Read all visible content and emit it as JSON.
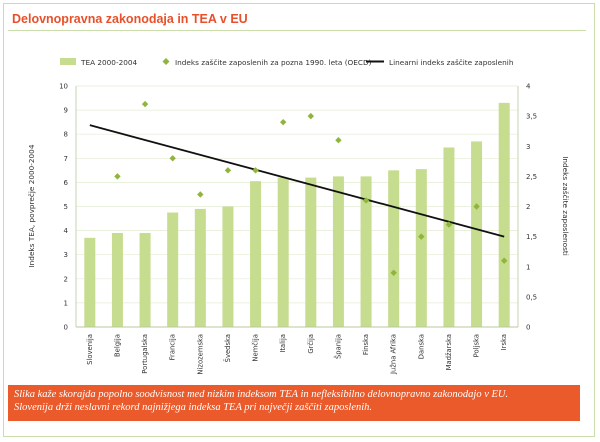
{
  "title": "Delovnopravna zakonodaja in TEA v EU",
  "legend": {
    "bars": "TEA 2000-2004",
    "diamonds": "Indeks zaščite zaposlenih za pozna 1990. leta (OECD)",
    "line": "Linearni indeks zaščite zaposlenih"
  },
  "caption": {
    "line1": "Slika kaže skorajda popolno soodvisnost med nizkim indeksom TEA in nefleksibilno delovnopravno zakonodajo v EU.",
    "line2": "Slovenija drži neslavni rekord najnižjega indeksa TEA pri največji zaščiti zaposlenih."
  },
  "colors": {
    "bar": "#c6dc8e",
    "diamond": "#8fb53c",
    "line": "#111111",
    "title": "#e8502a",
    "caption_bg": "#ea5a2a",
    "frame": "#c9dcaa",
    "grid": "#e4ecd4"
  },
  "chart_data": {
    "type": "bar",
    "categories": [
      "Slovenija",
      "Belgija",
      "Portugalska",
      "Francija",
      "Nizozemska",
      "Švedska",
      "Nemčija",
      "Italija",
      "Grčija",
      "Španija",
      "Finska",
      "Južna Afrika",
      "Danska",
      "Madžarska",
      "Poljska",
      "Irska"
    ],
    "series": [
      {
        "name": "TEA 2000-2004",
        "type": "bar",
        "axis": "left",
        "values": [
          3.7,
          3.9,
          3.9,
          4.75,
          4.9,
          5.0,
          6.05,
          6.2,
          6.2,
          6.25,
          6.25,
          6.5,
          6.55,
          7.45,
          7.7,
          9.3
        ]
      },
      {
        "name": "Indeks zaščite zaposlenih za pozna 1990. leta (OECD)",
        "type": "scatter",
        "axis": "right",
        "values": [
          null,
          2.5,
          3.7,
          2.8,
          2.2,
          2.6,
          2.6,
          3.4,
          3.5,
          3.1,
          2.1,
          0.9,
          1.5,
          1.7,
          2.0,
          1.1
        ]
      },
      {
        "name": "Linearni indeks zaščite zaposlenih",
        "type": "line",
        "axis": "right",
        "start": 3.35,
        "end": 1.5
      }
    ],
    "ylabel_left": "Indeks TEA, povprečje 2000-2004",
    "ylabel_right": "Indeks zaščite zaposlenosti",
    "ylim_left": [
      0,
      10
    ],
    "ylim_right": [
      0,
      4
    ],
    "yticks_left": [
      "0",
      "1",
      "2",
      "3",
      "4",
      "5",
      "6",
      "7",
      "8",
      "9",
      "10"
    ],
    "yticks_right": [
      "0",
      "0,5",
      "1",
      "1,5",
      "2",
      "2,5",
      "3",
      "3,5",
      "4"
    ],
    "grid": true,
    "legend_position": "top"
  }
}
